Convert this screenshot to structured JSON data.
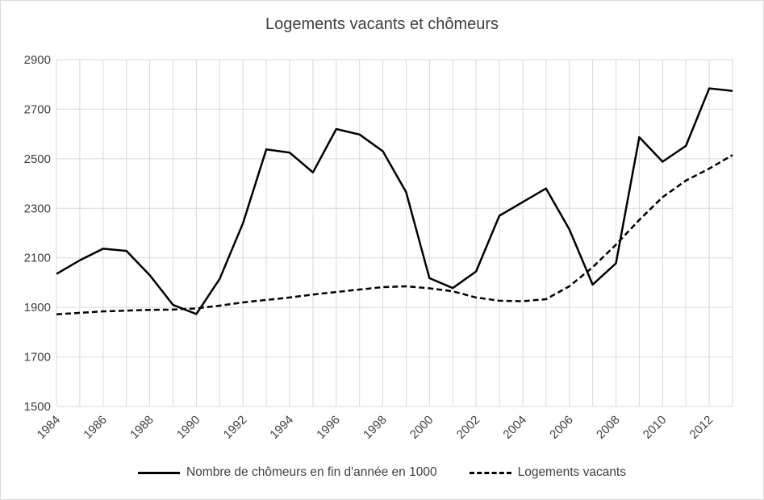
{
  "chart_data": {
    "type": "line",
    "title": "Logements vacants et chômeurs",
    "xlabel": "",
    "ylabel": "",
    "ylim": [
      1500,
      2900
    ],
    "yticks": [
      "1500",
      "1700",
      "1900",
      "2100",
      "2300",
      "2500",
      "2700",
      "2900"
    ],
    "xticks": [
      "1984",
      "1986",
      "1988",
      "1990",
      "1992",
      "1994",
      "1996",
      "1998",
      "2000",
      "2002",
      "2004",
      "2006",
      "2008",
      "2010",
      "2012"
    ],
    "x": [
      1984,
      1985,
      1986,
      1987,
      1988,
      1989,
      1990,
      1991,
      1992,
      1993,
      1994,
      1995,
      1996,
      1997,
      1998,
      1999,
      2000,
      2001,
      2002,
      2003,
      2004,
      2005,
      2006,
      2007,
      2008,
      2009,
      2010,
      2011,
      2012,
      2013
    ],
    "grid": true,
    "legend_position": "bottom",
    "series": [
      {
        "name": "Nombre de chômeurs en fin d'année en 1000",
        "style": "solid",
        "color": "#000000",
        "values": [
          2035,
          2090,
          2137,
          2128,
          2030,
          1910,
          1873,
          2015,
          2240,
          2538,
          2525,
          2445,
          2620,
          2598,
          2530,
          2365,
          2018,
          1978,
          2045,
          2270,
          2325,
          2380,
          2215,
          1992,
          2078,
          2587,
          2488,
          2552,
          2784,
          2774
        ]
      },
      {
        "name": "Logements vacants",
        "style": "dashed",
        "color": "#000000",
        "values": [
          1872,
          1878,
          1884,
          1887,
          1890,
          1891,
          1896,
          1907,
          1920,
          1930,
          1940,
          1952,
          1962,
          1972,
          1982,
          1985,
          1977,
          1965,
          1940,
          1927,
          1925,
          1933,
          1985,
          2062,
          2153,
          2253,
          2345,
          2412,
          2460,
          2515
        ]
      }
    ]
  }
}
